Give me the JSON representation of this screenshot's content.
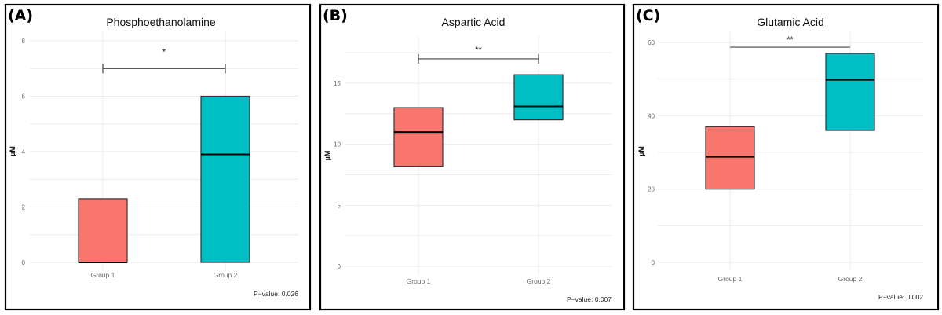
{
  "chart_data": [
    {
      "type": "box",
      "panel_label": "(A)",
      "title": "Phosphoethanolamine",
      "ylabel": "µM",
      "xlabel": "",
      "categories": [
        "Group 1",
        "Group 2"
      ],
      "boxes": [
        {
          "q1": 0,
          "median": 0,
          "q3": 2.3
        },
        {
          "q1": 0,
          "median": 3.9,
          "q3": 6.0
        }
      ],
      "ylim": [
        0,
        8
      ],
      "yticks": [
        0,
        2,
        4,
        6,
        8
      ],
      "yticks_labels": [
        "0",
        "2",
        "4",
        "6",
        "8"
      ],
      "minor_grid": [
        1,
        3,
        5,
        7
      ],
      "significance": {
        "y": 7.0,
        "label": "*",
        "end_ticks": true
      },
      "pvalue_text": "P−value: 0.026",
      "grid": true
    },
    {
      "type": "box",
      "panel_label": "(B)",
      "title": "Aspartic Acid",
      "ylabel": "µM",
      "xlabel": "",
      "categories": [
        "Group 1",
        "Group 2"
      ],
      "boxes": [
        {
          "q1": 8.2,
          "median": 11.0,
          "q3": 13.0
        },
        {
          "q1": 12.0,
          "median": 13.1,
          "q3": 15.7
        }
      ],
      "ylim": [
        0,
        17.5
      ],
      "yticks": [
        0,
        5,
        10,
        15
      ],
      "yticks_labels": [
        "0",
        "5",
        "10",
        "15"
      ],
      "minor_grid": [
        2.5,
        7.5,
        12.5,
        17.5
      ],
      "significance": {
        "y": 17.0,
        "label": "**",
        "end_ticks": true
      },
      "pvalue_text": "P−value: 0.007",
      "grid": true
    },
    {
      "type": "box",
      "panel_label": "(C)",
      "title": "Glutamic Acid",
      "ylabel": "µM",
      "xlabel": "",
      "categories": [
        "Group 1",
        "Group 2"
      ],
      "boxes": [
        {
          "q1": 20.0,
          "median": 28.8,
          "q3": 37.0
        },
        {
          "q1": 36.0,
          "median": 49.8,
          "q3": 57.0
        }
      ],
      "ylim": [
        0,
        60
      ],
      "yticks": [
        0,
        20,
        40,
        60
      ],
      "yticks_labels": [
        "0",
        "20",
        "40",
        "60"
      ],
      "minor_grid": [
        10,
        30,
        50
      ],
      "significance": {
        "y": 58.7,
        "label": "**",
        "end_ticks": false
      },
      "pvalue_text": "P−value: 0.002",
      "grid": true
    }
  ],
  "colors": {
    "group1": "#F8766D",
    "group2": "#00BFC4",
    "median": "#000000",
    "bracket": "#444444"
  }
}
